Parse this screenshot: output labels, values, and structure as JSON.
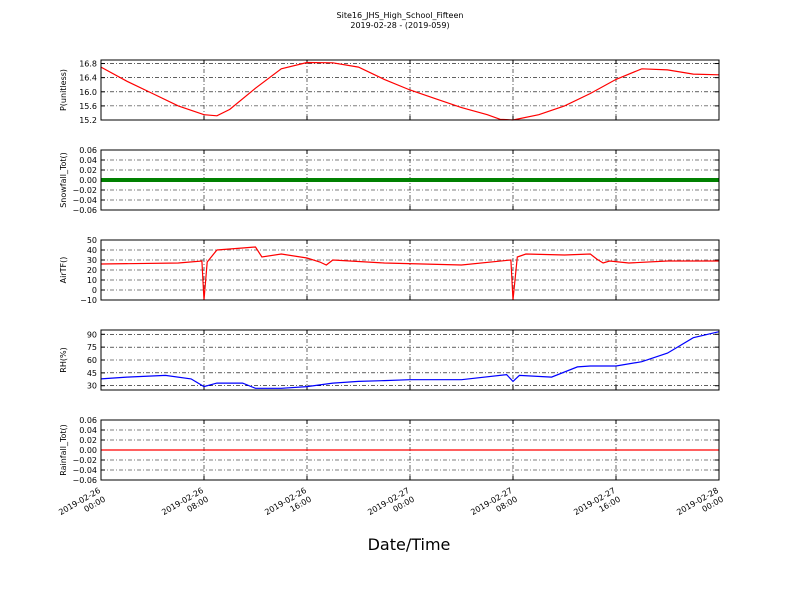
{
  "title": "Site16_JHS_High_School_Fifteen",
  "subtitle": "2019-02-28 - (2019-059)",
  "xlabel": "Date/Time",
  "x_ticks": [
    "2019-02-26 00:00",
    "2019-02-26 08:00",
    "2019-02-26 16:00",
    "2019-02-27 00:00",
    "2019-02-27 08:00",
    "2019-02-27 16:00",
    "2019-02-28 00:00"
  ],
  "chart_data": [
    {
      "type": "line",
      "ylabel": "P(unitless)",
      "color": "#ff0000",
      "ylim": [
        15.2,
        16.9
      ],
      "yticks": [
        "15.2",
        "15.6",
        "16.0",
        "16.4",
        "16.8"
      ],
      "x": [
        "2019-02-26 00:00",
        "2019-02-26 02:00",
        "2019-02-26 04:00",
        "2019-02-26 06:00",
        "2019-02-26 08:00",
        "2019-02-26 09:00",
        "2019-02-26 10:00",
        "2019-02-26 12:00",
        "2019-02-26 14:00",
        "2019-02-26 16:00",
        "2019-02-26 18:00",
        "2019-02-26 20:00",
        "2019-02-26 22:00",
        "2019-02-27 00:00",
        "2019-02-27 02:00",
        "2019-02-27 04:00",
        "2019-02-27 06:00",
        "2019-02-27 07:00",
        "2019-02-27 08:00",
        "2019-02-27 10:00",
        "2019-02-27 12:00",
        "2019-02-27 14:00",
        "2019-02-27 16:00",
        "2019-02-27 18:00",
        "2019-02-27 20:00",
        "2019-02-27 22:00",
        "2019-02-28 00:00"
      ],
      "y": [
        16.7,
        16.3,
        15.95,
        15.6,
        15.35,
        15.32,
        15.5,
        16.1,
        16.65,
        16.83,
        16.82,
        16.7,
        16.35,
        16.05,
        15.8,
        15.55,
        15.35,
        15.22,
        15.2,
        15.35,
        15.6,
        15.95,
        16.35,
        16.65,
        16.62,
        16.5,
        16.48
      ]
    },
    {
      "type": "line",
      "ylabel": "Snowfall_Tot()",
      "color": "#008000",
      "ylim": [
        -0.06,
        0.06
      ],
      "yticks": [
        "−0.06",
        "−0.04",
        "−0.02",
        "0.00",
        "0.02",
        "0.04",
        "0.06"
      ],
      "x": [
        "2019-02-26 00:00",
        "2019-02-28 00:00"
      ],
      "y": [
        0.0,
        0.0
      ]
    },
    {
      "type": "line",
      "ylabel": "AirTF()",
      "color": "#ff0000",
      "ylim": [
        -10,
        50
      ],
      "yticks": [
        "−10",
        "0",
        "10",
        "20",
        "30",
        "40",
        "50"
      ],
      "x": [
        "2019-02-26 00:00",
        "2019-02-26 06:00",
        "2019-02-26 07:50",
        "2019-02-26 08:00",
        "2019-02-26 08:15",
        "2019-02-26 09:00",
        "2019-02-26 11:00",
        "2019-02-26 12:00",
        "2019-02-26 12:30",
        "2019-02-26 14:00",
        "2019-02-26 16:00",
        "2019-02-26 17:00",
        "2019-02-26 17:30",
        "2019-02-26 18:00",
        "2019-02-26 22:00",
        "2019-02-27 04:00",
        "2019-02-27 07:50",
        "2019-02-27 08:00",
        "2019-02-27 08:20",
        "2019-02-27 09:00",
        "2019-02-27 12:00",
        "2019-02-27 14:00",
        "2019-02-27 14:30",
        "2019-02-27 15:00",
        "2019-02-27 15:30",
        "2019-02-27 17:00",
        "2019-02-27 20:00",
        "2019-02-28 00:00"
      ],
      "y": [
        26,
        27,
        29,
        -10,
        28,
        40,
        42,
        43,
        33,
        36,
        32,
        28,
        25,
        30,
        27,
        25,
        30,
        -10,
        33,
        36,
        35,
        36,
        31,
        27,
        29,
        27,
        29,
        29
      ]
    },
    {
      "type": "line",
      "ylabel": "RH(%)",
      "color": "#0000ff",
      "ylim": [
        25,
        95
      ],
      "yticks": [
        "30",
        "45",
        "60",
        "75",
        "90"
      ],
      "x": [
        "2019-02-26 00:00",
        "2019-02-26 02:00",
        "2019-02-26 05:00",
        "2019-02-26 07:00",
        "2019-02-26 08:00",
        "2019-02-26 09:00",
        "2019-02-26 11:00",
        "2019-02-26 12:00",
        "2019-02-26 14:00",
        "2019-02-26 16:00",
        "2019-02-26 18:00",
        "2019-02-26 20:00",
        "2019-02-26 22:00",
        "2019-02-27 00:00",
        "2019-02-27 04:00",
        "2019-02-27 07:30",
        "2019-02-27 08:00",
        "2019-02-27 08:30",
        "2019-02-27 11:00",
        "2019-02-27 13:00",
        "2019-02-27 14:00",
        "2019-02-27 16:00",
        "2019-02-27 18:00",
        "2019-02-27 20:00",
        "2019-02-27 22:00",
        "2019-02-28 00:00"
      ],
      "y": [
        38,
        40,
        42,
        38,
        29,
        33,
        33,
        27,
        27,
        29,
        33,
        35,
        36,
        37,
        37,
        43,
        35,
        42,
        40,
        52,
        53,
        53,
        58,
        68,
        86,
        93
      ]
    },
    {
      "type": "line",
      "ylabel": "Rainfall_Tot()",
      "color": "#ff0000",
      "ylim": [
        -0.06,
        0.06
      ],
      "yticks": [
        "−0.06",
        "−0.04",
        "−0.02",
        "0.00",
        "0.02",
        "0.04",
        "0.06"
      ],
      "x": [
        "2019-02-26 00:00",
        "2019-02-28 00:00"
      ],
      "y": [
        0.0,
        0.0
      ]
    }
  ]
}
